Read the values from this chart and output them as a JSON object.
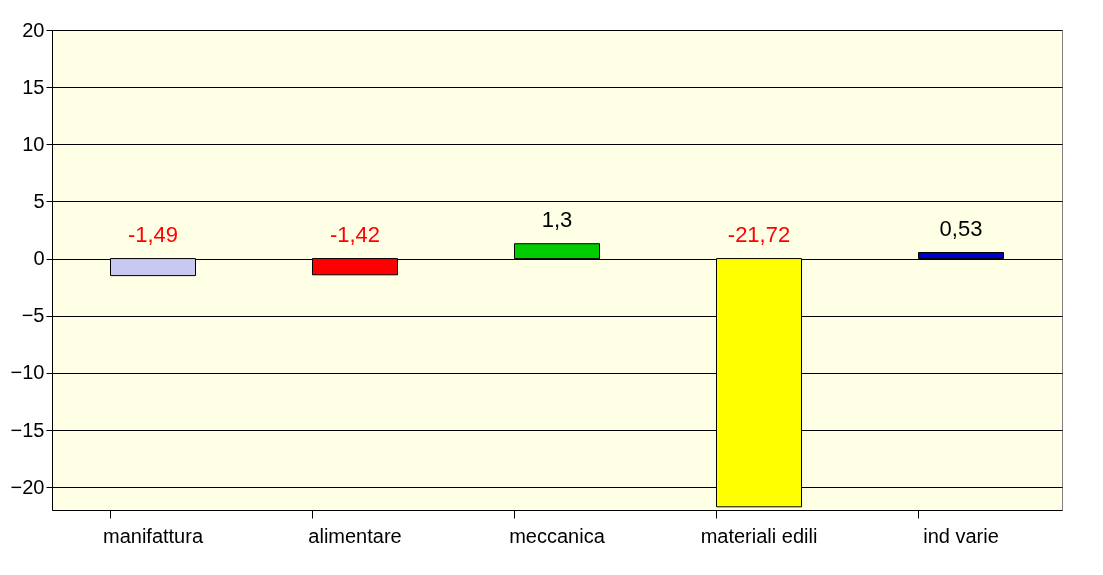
{
  "chart_data": {
    "type": "bar",
    "categories": [
      "manifattura",
      "alimentare",
      "meccanica",
      "materiali edili",
      "ind varie"
    ],
    "values": [
      -1.49,
      -1.42,
      1.3,
      -21.72,
      0.53
    ],
    "colors": [
      "#c8c8f0",
      "#ff0000",
      "#00cc00",
      "#ffff00",
      "#0000cc"
    ],
    "value_labels": [
      "-1,49",
      "-1,42",
      "1,3",
      "-21,72",
      "0,53"
    ],
    "ylim": [
      -22,
      20
    ],
    "yticks": [
      -20,
      -15,
      -10,
      -5,
      0,
      5,
      10,
      15,
      20
    ],
    "grid": "y"
  }
}
